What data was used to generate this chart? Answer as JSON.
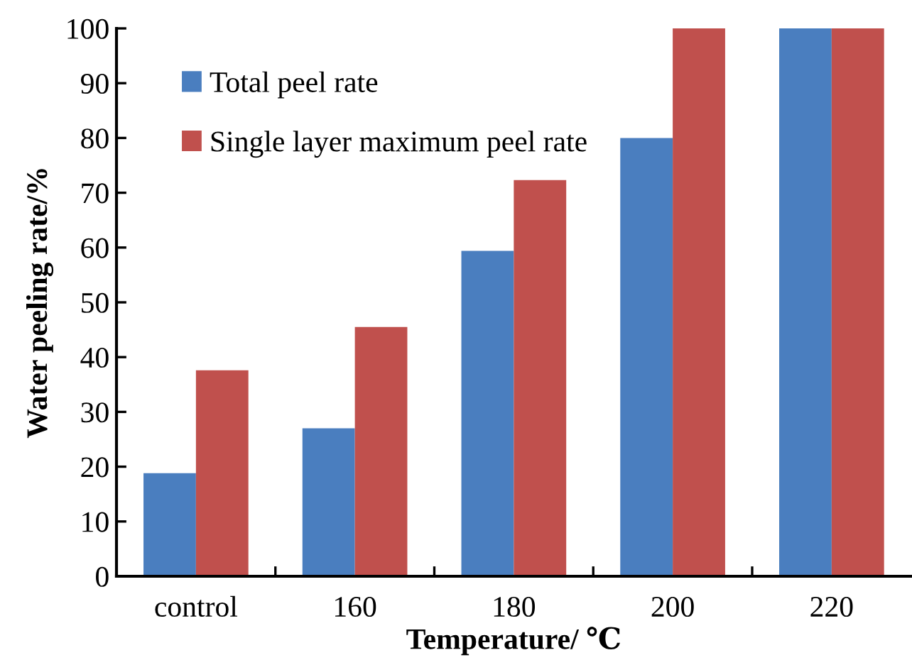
{
  "chart_data": {
    "type": "bar",
    "xlabel": "Temperature/ ℃",
    "ylabel": "Water peeling rate/%",
    "categories": [
      "control",
      "160",
      "180",
      "200",
      "220"
    ],
    "series": [
      {
        "name": "Total peel rate",
        "color": "#4a7ebf",
        "values": [
          18.8,
          27,
          59.4,
          80,
          100
        ]
      },
      {
        "name": "Single layer maximum peel rate",
        "color": "#c0504d",
        "values": [
          37.6,
          45.5,
          72.3,
          100,
          100
        ]
      }
    ],
    "ylim": [
      0,
      100
    ],
    "yticks": [
      0,
      10,
      20,
      30,
      40,
      50,
      60,
      70,
      80,
      90,
      100
    ],
    "grid": false,
    "legend": "top left"
  }
}
